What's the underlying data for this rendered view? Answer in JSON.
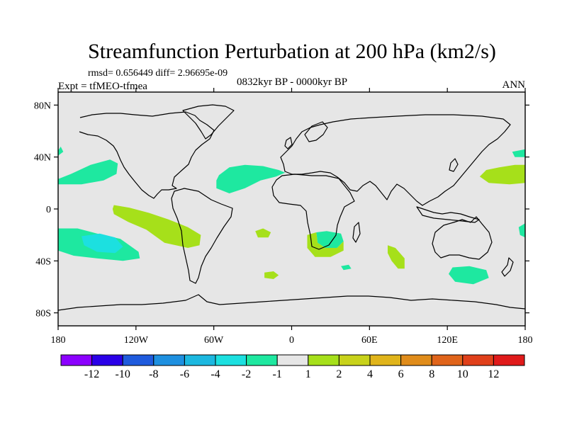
{
  "title": "Streamfunction Perturbation at 200 hPa (km2/s)",
  "stats": "rmsd= 0.656449 diff= 2.96695e-09",
  "experiment": "Expt = tfMEO-tfmea",
  "period": "0832kyr BP - 0000kyr BP",
  "season": "ANN",
  "chart_data": {
    "type": "map",
    "projection": "cylindrical-equidistant",
    "lon_range": [
      -180,
      180
    ],
    "lat_range": [
      -90,
      90
    ],
    "lat_ticks": [
      {
        "value": 80,
        "label": "80N"
      },
      {
        "value": 40,
        "label": "40N"
      },
      {
        "value": 0,
        "label": "0"
      },
      {
        "value": -40,
        "label": "40S"
      },
      {
        "value": -80,
        "label": "80S"
      }
    ],
    "lon_ticks": [
      {
        "value": -180,
        "label": "180"
      },
      {
        "value": -120,
        "label": "120W"
      },
      {
        "value": -60,
        "label": "60W"
      },
      {
        "value": 0,
        "label": "0"
      },
      {
        "value": 60,
        "label": "60E"
      },
      {
        "value": 120,
        "label": "120E"
      },
      {
        "value": 180,
        "label": "180"
      }
    ],
    "colorbar": {
      "colors": [
        "#8b00ff",
        "#2a00e8",
        "#1f5bdd",
        "#1e90e0",
        "#1cb8e0",
        "#1ce0e0",
        "#1ee8a0",
        "#e6e6e6",
        "#a6e01a",
        "#c8d21a",
        "#e0b41a",
        "#e08c1a",
        "#e0641a",
        "#e0401a",
        "#e01a1a"
      ],
      "labels": [
        "-12",
        "-10",
        "-8",
        "-6",
        "-4",
        "-2",
        "-1",
        "1",
        "2",
        "4",
        "6",
        "8",
        "10",
        "12"
      ]
    },
    "regions": [
      {
        "name": "neg-pacific-nw",
        "color": "#1ee8a0",
        "points": [
          [
            -180,
            45
          ],
          [
            -178,
            48
          ],
          [
            -176,
            44
          ],
          [
            -180,
            41
          ]
        ]
      },
      {
        "name": "neg-pacific-n",
        "color": "#1ee8a0",
        "points": [
          [
            -180,
            23
          ],
          [
            -170,
            27
          ],
          [
            -155,
            34
          ],
          [
            -140,
            38
          ],
          [
            -134,
            35
          ],
          [
            -135,
            27
          ],
          [
            -145,
            22
          ],
          [
            -162,
            19
          ],
          [
            -180,
            19
          ]
        ]
      },
      {
        "name": "pos-pacific-eq",
        "color": "#a6e01a",
        "points": [
          [
            -137,
            3
          ],
          [
            -125,
            1
          ],
          [
            -110,
            -3
          ],
          [
            -95,
            -8
          ],
          [
            -80,
            -14
          ],
          [
            -70,
            -20
          ],
          [
            -71,
            -28
          ],
          [
            -80,
            -30
          ],
          [
            -98,
            -26
          ],
          [
            -112,
            -16
          ],
          [
            -126,
            -10
          ],
          [
            -137,
            -4
          ],
          [
            -138,
            0
          ]
        ]
      },
      {
        "name": "neg-pacific-s",
        "color": "#1ee8a0",
        "points": [
          [
            -180,
            -15
          ],
          [
            -165,
            -15
          ],
          [
            -150,
            -19
          ],
          [
            -132,
            -23
          ],
          [
            -118,
            -33
          ],
          [
            -117,
            -38
          ],
          [
            -130,
            -40
          ],
          [
            -150,
            -38
          ],
          [
            -168,
            -36
          ],
          [
            -180,
            -32
          ]
        ]
      },
      {
        "name": "neg-pacific-s-core",
        "color": "#1ce0e0",
        "points": [
          [
            -162,
            -21
          ],
          [
            -148,
            -19
          ],
          [
            -136,
            -22
          ],
          [
            -130,
            -29
          ],
          [
            -136,
            -34
          ],
          [
            -150,
            -33
          ],
          [
            -160,
            -28
          ]
        ]
      },
      {
        "name": "neg-atlantic-n",
        "color": "#1ee8a0",
        "points": [
          [
            -56,
            26
          ],
          [
            -48,
            32
          ],
          [
            -36,
            34
          ],
          [
            -22,
            33
          ],
          [
            -10,
            30
          ],
          [
            -5,
            28
          ],
          [
            -12,
            25
          ],
          [
            -24,
            22
          ],
          [
            -36,
            16
          ],
          [
            -48,
            12
          ],
          [
            -58,
            16
          ],
          [
            -58,
            22
          ]
        ]
      },
      {
        "name": "pos-atlantic-s1",
        "color": "#a6e01a",
        "points": [
          [
            -28,
            -17
          ],
          [
            -22,
            -15
          ],
          [
            -16,
            -18
          ],
          [
            -18,
            -22
          ],
          [
            -26,
            -22
          ]
        ]
      },
      {
        "name": "pos-atlantic-s2",
        "color": "#a6e01a",
        "points": [
          [
            -21,
            -49
          ],
          [
            -14,
            -48
          ],
          [
            -10,
            -51
          ],
          [
            -14,
            -54
          ],
          [
            -21,
            -53
          ]
        ]
      },
      {
        "name": "neg-south-africa",
        "color": "#1ee8a0",
        "points": [
          [
            19,
            -18
          ],
          [
            27,
            -17
          ],
          [
            38,
            -19
          ],
          [
            40,
            -25
          ],
          [
            35,
            -30
          ],
          [
            26,
            -30
          ],
          [
            20,
            -26
          ]
        ]
      },
      {
        "name": "pos-south-africa",
        "color": "#a6e01a",
        "points": [
          [
            12,
            -20
          ],
          [
            19,
            -18
          ],
          [
            20,
            -26
          ],
          [
            26,
            -30
          ],
          [
            35,
            -30
          ],
          [
            40,
            -25
          ],
          [
            40,
            -32
          ],
          [
            30,
            -37
          ],
          [
            18,
            -37
          ],
          [
            12,
            -30
          ]
        ]
      },
      {
        "name": "pos-indian-ocean",
        "color": "#a6e01a",
        "points": [
          [
            74,
            -28
          ],
          [
            80,
            -30
          ],
          [
            87,
            -38
          ],
          [
            87,
            -46
          ],
          [
            82,
            -46
          ],
          [
            77,
            -40
          ],
          [
            74,
            -34
          ]
        ]
      },
      {
        "name": "neg-indian-small",
        "color": "#1ee8a0",
        "points": [
          [
            38,
            -44
          ],
          [
            44,
            -43
          ],
          [
            46,
            -46
          ],
          [
            40,
            -47
          ]
        ]
      },
      {
        "name": "neg-south-australia",
        "color": "#1ee8a0",
        "points": [
          [
            124,
            -45
          ],
          [
            137,
            -44
          ],
          [
            150,
            -47
          ],
          [
            152,
            -53
          ],
          [
            140,
            -58
          ],
          [
            126,
            -56
          ],
          [
            121,
            -50
          ]
        ]
      },
      {
        "name": "pos-pacific-ne",
        "color": "#a6e01a",
        "points": [
          [
            150,
            30
          ],
          [
            160,
            32
          ],
          [
            172,
            34
          ],
          [
            180,
            34
          ],
          [
            180,
            20
          ],
          [
            168,
            19
          ],
          [
            152,
            20
          ],
          [
            145,
            25
          ]
        ]
      },
      {
        "name": "pos-pacific-ne-2",
        "color": "#1ee8a0",
        "points": [
          [
            170,
            44
          ],
          [
            180,
            46
          ],
          [
            180,
            40
          ],
          [
            172,
            40
          ]
        ]
      },
      {
        "name": "pos-east-edge",
        "color": "#1ee8a0",
        "points": [
          [
            175,
            -14
          ],
          [
            180,
            -11
          ],
          [
            180,
            -22
          ],
          [
            176,
            -20
          ]
        ]
      }
    ]
  }
}
